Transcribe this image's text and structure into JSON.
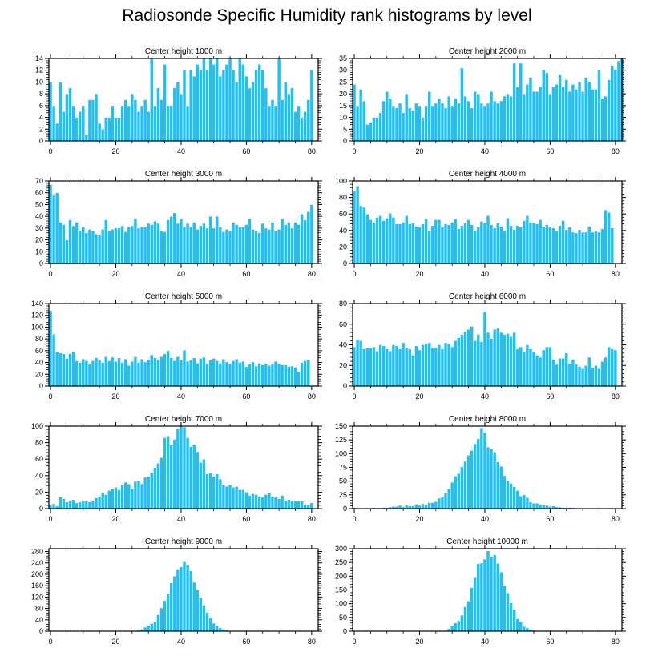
{
  "page": {
    "title": "Radiosonde Specific Humidity rank histograms by level"
  },
  "style": {
    "bar_color": "#1ec0f5",
    "bar_edge": "#ffffff",
    "axis_color": "#000000"
  },
  "chart_data": [
    {
      "type": "bar",
      "title": "Center height 1000 m",
      "x_start": 0,
      "ylim": [
        0,
        14
      ],
      "yticks": [
        0,
        2,
        4,
        6,
        8,
        10,
        12,
        14
      ],
      "xticks": [
        0,
        20,
        40,
        60,
        80
      ],
      "values": [
        10,
        6,
        3,
        10,
        5,
        8,
        9,
        6,
        4,
        5,
        6,
        1,
        7,
        7,
        8,
        3,
        2,
        4,
        4,
        6,
        4,
        4,
        6,
        7,
        6,
        8,
        7,
        5,
        6,
        7,
        5,
        14,
        6,
        9,
        7,
        13,
        6,
        6,
        9,
        10,
        8,
        12,
        6,
        12,
        11,
        13,
        12,
        14,
        12,
        14,
        13,
        14,
        11,
        12,
        13,
        14,
        12,
        10,
        14,
        13,
        11,
        9,
        10,
        12,
        13,
        12,
        9,
        6,
        7,
        6,
        14,
        7,
        10,
        8,
        9,
        5,
        6,
        4,
        5,
        7,
        12
      ]
    },
    {
      "type": "bar",
      "title": "Center height 2000 m",
      "x_start": 0,
      "ylim": [
        0,
        35
      ],
      "yticks": [
        0,
        5,
        10,
        15,
        20,
        25,
        30,
        35
      ],
      "xticks": [
        0,
        20,
        40,
        60,
        80
      ],
      "values": [
        24,
        15,
        22,
        17,
        7,
        8,
        10,
        10,
        12,
        17,
        21,
        18,
        15,
        14,
        16,
        12,
        20,
        14,
        13,
        16,
        15,
        10,
        15,
        21,
        15,
        16,
        18,
        16,
        14,
        19,
        15,
        18,
        16,
        31,
        19,
        17,
        14,
        21,
        20,
        16,
        15,
        16,
        21,
        17,
        16,
        17,
        19,
        20,
        19,
        33,
        23,
        33,
        20,
        24,
        27,
        21,
        21,
        23,
        30,
        29,
        20,
        23,
        24,
        28,
        23,
        26,
        21,
        24,
        22,
        25,
        21,
        27,
        25,
        22,
        22,
        30,
        18,
        19,
        26,
        32,
        30,
        34,
        35
      ]
    },
    {
      "type": "bar",
      "title": "Center height 3000 m",
      "x_start": 0,
      "ylim": [
        0,
        70
      ],
      "yticks": [
        0,
        10,
        20,
        30,
        40,
        50,
        60,
        70
      ],
      "xticks": [
        0,
        20,
        40,
        60,
        80
      ],
      "values": [
        67,
        58,
        60,
        35,
        33,
        20,
        37,
        32,
        35,
        28,
        31,
        26,
        29,
        28,
        25,
        24,
        29,
        37,
        28,
        29,
        30,
        30,
        32,
        27,
        31,
        32,
        38,
        30,
        31,
        31,
        34,
        33,
        36,
        34,
        28,
        27,
        37,
        40,
        43,
        34,
        38,
        31,
        34,
        31,
        35,
        29,
        32,
        34,
        30,
        40,
        30,
        40,
        31,
        27,
        29,
        28,
        35,
        33,
        31,
        31,
        33,
        38,
        29,
        28,
        26,
        34,
        30,
        29,
        35,
        28,
        29,
        38,
        33,
        35,
        30,
        35,
        33,
        42,
        37,
        44,
        50
      ]
    },
    {
      "type": "bar",
      "title": "Center height 4000 m",
      "x_start": 0,
      "ylim": [
        0,
        100
      ],
      "yticks": [
        0,
        20,
        40,
        60,
        80,
        100
      ],
      "xticks": [
        0,
        20,
        40,
        60,
        80
      ],
      "values": [
        88,
        94,
        70,
        68,
        60,
        53,
        50,
        56,
        58,
        52,
        55,
        61,
        56,
        48,
        48,
        50,
        58,
        48,
        49,
        45,
        44,
        48,
        54,
        40,
        46,
        53,
        53,
        44,
        48,
        47,
        50,
        54,
        42,
        46,
        49,
        53,
        47,
        40,
        44,
        51,
        49,
        58,
        47,
        43,
        49,
        45,
        40,
        55,
        46,
        41,
        46,
        44,
        52,
        58,
        50,
        49,
        48,
        53,
        44,
        47,
        44,
        43,
        40,
        46,
        52,
        41,
        44,
        38,
        37,
        41,
        38,
        38,
        45,
        38,
        39,
        38,
        42,
        65,
        62,
        43
      ]
    },
    {
      "type": "bar",
      "title": "Center height 5000 m",
      "x_start": 0,
      "ylim": [
        0,
        140
      ],
      "yticks": [
        0,
        20,
        40,
        60,
        80,
        100,
        120,
        140
      ],
      "xticks": [
        0,
        20,
        40,
        60,
        80
      ],
      "values": [
        128,
        88,
        58,
        56,
        55,
        47,
        55,
        58,
        43,
        40,
        46,
        43,
        37,
        43,
        48,
        44,
        40,
        50,
        43,
        49,
        42,
        48,
        40,
        46,
        35,
        42,
        50,
        40,
        46,
        41,
        44,
        53,
        48,
        44,
        50,
        55,
        60,
        48,
        43,
        50,
        44,
        61,
        42,
        44,
        48,
        39,
        47,
        49,
        38,
        44,
        47,
        43,
        39,
        46,
        41,
        38,
        43,
        46,
        40,
        42,
        33,
        37,
        41,
        34,
        39,
        36,
        38,
        35,
        37,
        42,
        38,
        36,
        36,
        33,
        34,
        32,
        25,
        40,
        43,
        45
      ]
    },
    {
      "type": "bar",
      "title": "Center height 6000 m",
      "x_start": 0,
      "ylim": [
        0,
        80
      ],
      "yticks": [
        0,
        20,
        40,
        60,
        80
      ],
      "xticks": [
        0,
        20,
        40,
        60,
        80
      ],
      "values": [
        38,
        45,
        44,
        36,
        37,
        37,
        38,
        34,
        40,
        39,
        36,
        34,
        40,
        39,
        36,
        42,
        37,
        36,
        30,
        39,
        35,
        40,
        41,
        42,
        37,
        37,
        40,
        36,
        42,
        41,
        38,
        44,
        47,
        50,
        53,
        55,
        58,
        44,
        50,
        43,
        72,
        52,
        46,
        55,
        56,
        52,
        50,
        51,
        48,
        52,
        36,
        38,
        33,
        40,
        36,
        33,
        30,
        28,
        35,
        38,
        38,
        26,
        21,
        27,
        27,
        32,
        22,
        26,
        21,
        19,
        17,
        20,
        28,
        18,
        20,
        17,
        24,
        28,
        38,
        36,
        35
      ]
    },
    {
      "type": "bar",
      "title": "Center height 7000 m",
      "x_start": 0,
      "ylim": [
        0,
        100
      ],
      "yticks": [
        0,
        20,
        40,
        60,
        80,
        100
      ],
      "xticks": [
        0,
        20,
        40,
        60,
        80
      ],
      "values": [
        5,
        6,
        3,
        14,
        12,
        8,
        9,
        11,
        7,
        8,
        10,
        9,
        8,
        10,
        13,
        15,
        19,
        17,
        22,
        24,
        26,
        23,
        29,
        32,
        30,
        24,
        33,
        34,
        30,
        38,
        39,
        44,
        50,
        55,
        62,
        86,
        88,
        77,
        84,
        97,
        100,
        99,
        86,
        75,
        78,
        69,
        56,
        60,
        42,
        43,
        39,
        42,
        36,
        29,
        27,
        29,
        26,
        27,
        23,
        23,
        20,
        16,
        18,
        17,
        15,
        14,
        17,
        19,
        15,
        14,
        12,
        16,
        10,
        11,
        10,
        9,
        10,
        9,
        5,
        5,
        7
      ]
    },
    {
      "type": "bar",
      "title": "Center height 8000 m",
      "x_start": 0,
      "ylim": [
        0,
        150
      ],
      "yticks": [
        0,
        25,
        50,
        75,
        100,
        125,
        150
      ],
      "xticks": [
        0,
        20,
        40,
        60,
        80
      ],
      "values": [
        2,
        0,
        1,
        1,
        1,
        1,
        2,
        1,
        1,
        2,
        2,
        3,
        4,
        4,
        6,
        3,
        7,
        5,
        5,
        8,
        6,
        9,
        7,
        11,
        11,
        13,
        19,
        21,
        28,
        36,
        48,
        59,
        64,
        76,
        86,
        97,
        106,
        118,
        127,
        147,
        138,
        112,
        109,
        103,
        85,
        77,
        60,
        51,
        46,
        40,
        33,
        23,
        25,
        20,
        12,
        10,
        10,
        8,
        7,
        6,
        4,
        5,
        3,
        3,
        2,
        2,
        2,
        2,
        1,
        1,
        1,
        1,
        1,
        1,
        0,
        1,
        0,
        1,
        0,
        0,
        0,
        0
      ]
    },
    {
      "type": "bar",
      "title": "Center height 9000 m",
      "x_start": 0,
      "ylim": [
        0,
        290
      ],
      "yticks": [
        0,
        40,
        80,
        120,
        160,
        200,
        240,
        280
      ],
      "xticks": [
        0,
        20,
        40,
        60,
        80
      ],
      "values": [
        0,
        0,
        0,
        0,
        0,
        0,
        0,
        0,
        0,
        0,
        0,
        0,
        0,
        0,
        0,
        0,
        0,
        0,
        0,
        0,
        0,
        0,
        0,
        0,
        1,
        1,
        2,
        4,
        7,
        14,
        21,
        27,
        34,
        58,
        82,
        108,
        132,
        170,
        194,
        216,
        226,
        244,
        232,
        212,
        172,
        146,
        118,
        92,
        66,
        46,
        28,
        20,
        12,
        7,
        4,
        2,
        1,
        1,
        0,
        0,
        0,
        0,
        0,
        0,
        0,
        0,
        0,
        0,
        0,
        0,
        0,
        0,
        0,
        0,
        0,
        0,
        0,
        0,
        0,
        0,
        0
      ]
    },
    {
      "type": "bar",
      "title": "Center height 10000 m",
      "x_start": 0,
      "ylim": [
        0,
        300
      ],
      "yticks": [
        0,
        50,
        100,
        150,
        200,
        250,
        300
      ],
      "xticks": [
        0,
        20,
        40,
        60,
        80
      ],
      "values": [
        0,
        0,
        0,
        0,
        0,
        0,
        0,
        0,
        0,
        0,
        0,
        0,
        0,
        0,
        0,
        0,
        0,
        0,
        0,
        0,
        0,
        0,
        0,
        0,
        0,
        0,
        0,
        1,
        3,
        9,
        20,
        30,
        38,
        58,
        89,
        110,
        158,
        195,
        245,
        248,
        262,
        292,
        270,
        278,
        247,
        215,
        166,
        139,
        103,
        79,
        45,
        33,
        17,
        12,
        6,
        4,
        2,
        1,
        1,
        0,
        0,
        0,
        0,
        0,
        0,
        0,
        0,
        0,
        0,
        0,
        0,
        0,
        0,
        0,
        0,
        0,
        0,
        0,
        0,
        0,
        0,
        0
      ]
    }
  ]
}
